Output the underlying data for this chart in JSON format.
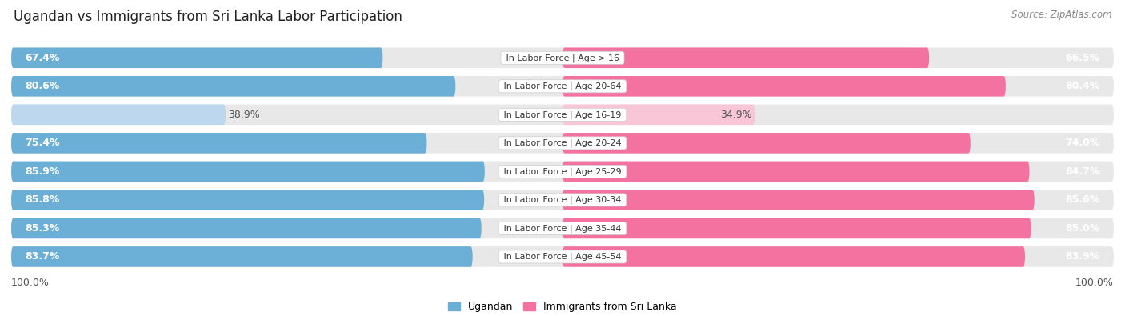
{
  "title": "Ugandan vs Immigrants from Sri Lanka Labor Participation",
  "source": "Source: ZipAtlas.com",
  "categories": [
    "In Labor Force | Age > 16",
    "In Labor Force | Age 20-64",
    "In Labor Force | Age 16-19",
    "In Labor Force | Age 20-24",
    "In Labor Force | Age 25-29",
    "In Labor Force | Age 30-34",
    "In Labor Force | Age 35-44",
    "In Labor Force | Age 45-54"
  ],
  "ugandan_values": [
    67.4,
    80.6,
    38.9,
    75.4,
    85.9,
    85.8,
    85.3,
    83.7
  ],
  "srilanka_values": [
    66.5,
    80.4,
    34.9,
    74.0,
    84.7,
    85.6,
    85.0,
    83.9
  ],
  "ugandan_color": "#6BAED6",
  "ugandan_color_light": "#BDD7EE",
  "srilanka_color": "#F472A0",
  "srilanka_color_light": "#F9C6D8",
  "row_bg_color": "#E8E8E8",
  "label_color_white": "#FFFFFF",
  "label_color_dark": "#555555",
  "legend_ugandan": "Ugandan",
  "legend_srilanka": "Immigrants from Sri Lanka",
  "max_value": 100.0,
  "title_fontsize": 12,
  "value_fontsize": 9,
  "category_fontsize": 8,
  "legend_fontsize": 9,
  "source_fontsize": 8.5,
  "bottom_label": "100.0%"
}
